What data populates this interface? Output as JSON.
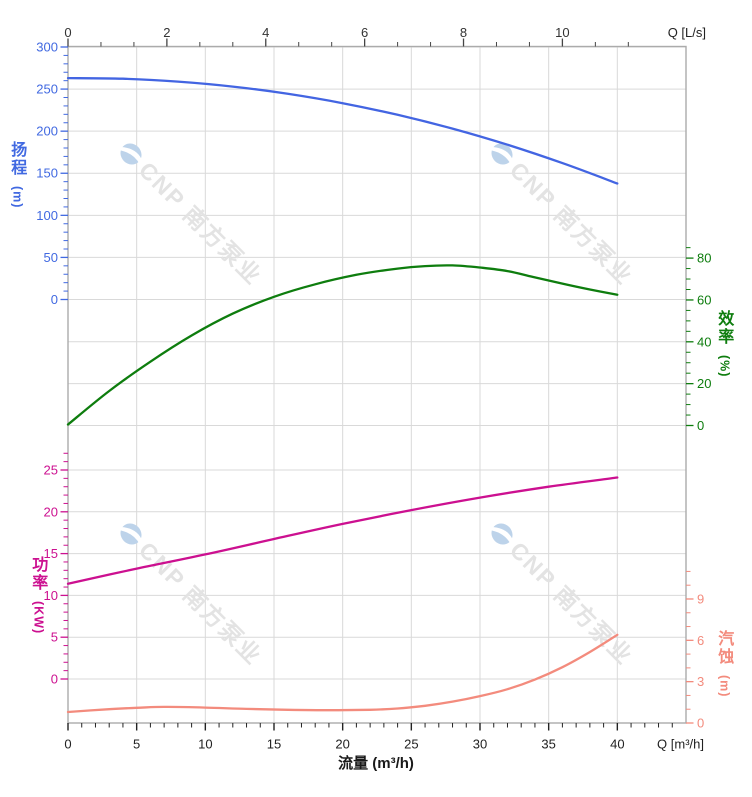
{
  "watermark": {
    "text": "CNP 南方泵业",
    "logo_color": "#bdd3ea",
    "text_color": "#e3e3e3"
  },
  "axes": {
    "x_bottom": {
      "axis_label": "流量 (m³/h)",
      "unit_label": "Q [m³/h]",
      "color": "#2b2b2b",
      "ticks": [
        0,
        5,
        10,
        15,
        20,
        25,
        30,
        35,
        40
      ],
      "range": [
        0,
        45
      ]
    },
    "x_top": {
      "unit_label": "Q [L/s]",
      "color": "#2b2b2b",
      "ticks": [
        0,
        2,
        4,
        6,
        8,
        10
      ]
    },
    "head": {
      "title": "扬程",
      "unit": "(m)",
      "color": "#4169e1",
      "ticks": [
        300,
        250,
        200,
        150,
        100,
        50,
        0
      ],
      "range": [
        0,
        300
      ]
    },
    "efficiency": {
      "title": "效率",
      "unit": "(%)",
      "color": "#0e7d0e",
      "ticks": [
        80,
        60,
        40,
        20,
        0
      ],
      "range": [
        0,
        80
      ]
    },
    "power": {
      "title": "功率",
      "unit": "(KW)",
      "color": "#cc1090",
      "ticks": [
        25,
        20,
        15,
        10,
        5,
        0
      ],
      "range": [
        0,
        25
      ]
    },
    "npsh": {
      "title": "汽蚀",
      "unit": "(m)",
      "color": "#f38b7d",
      "ticks": [
        9,
        6,
        3,
        0
      ],
      "range": [
        0,
        9
      ]
    }
  },
  "chart_data": {
    "type": "line",
    "x_axis": {
      "label": "流量 (m³/h)",
      "secondary_label": "Q [L/s]",
      "min": 0,
      "max": 45,
      "major_tick_step": 5,
      "minor_tick_step": 1,
      "grid": true
    },
    "top_axis_unit_conversion_ticks": [
      0,
      2,
      4,
      6,
      8,
      10
    ],
    "series": [
      {
        "id": "head",
        "name": "扬程",
        "axis": "head",
        "color": "#4365e2",
        "points": [
          [
            0,
            263.0
          ],
          [
            4,
            262.3
          ],
          [
            8,
            258.9
          ],
          [
            12,
            253.0
          ],
          [
            16,
            244.4
          ],
          [
            20,
            233.2
          ],
          [
            24,
            219.4
          ],
          [
            28,
            203.0
          ],
          [
            32,
            183.9
          ],
          [
            36,
            162.1
          ],
          [
            40,
            137.8
          ]
        ]
      },
      {
        "id": "efficiency",
        "name": "效率",
        "axis": "efficiency",
        "color": "#0e7d0e",
        "points": [
          [
            0,
            0.5
          ],
          [
            3,
            16.5
          ],
          [
            6,
            30.5
          ],
          [
            9,
            43.0
          ],
          [
            12,
            53.5
          ],
          [
            15,
            61.5
          ],
          [
            18,
            67.5
          ],
          [
            21,
            72.0
          ],
          [
            24,
            75.0
          ],
          [
            26,
            76.2
          ],
          [
            28,
            76.5
          ],
          [
            30,
            75.5
          ],
          [
            32,
            73.8
          ],
          [
            34,
            70.8
          ],
          [
            36,
            67.8
          ],
          [
            38,
            65.0
          ],
          [
            40,
            62.5
          ]
        ]
      },
      {
        "id": "power",
        "name": "功率",
        "axis": "power",
        "color": "#cc1090",
        "points": [
          [
            0,
            11.4
          ],
          [
            5,
            13.2
          ],
          [
            10,
            14.9
          ],
          [
            15,
            16.75
          ],
          [
            20,
            18.55
          ],
          [
            25,
            20.2
          ],
          [
            30,
            21.7
          ],
          [
            35,
            23.0
          ],
          [
            40,
            24.1
          ]
        ]
      },
      {
        "id": "npsh",
        "name": "汽蚀",
        "axis": "npsh",
        "color": "#f38b7d",
        "points": [
          [
            0,
            0.8
          ],
          [
            3,
            1.0
          ],
          [
            5,
            1.1
          ],
          [
            7,
            1.17
          ],
          [
            10,
            1.12
          ],
          [
            13,
            1.02
          ],
          [
            16,
            0.96
          ],
          [
            19,
            0.93
          ],
          [
            22,
            0.96
          ],
          [
            24,
            1.05
          ],
          [
            26,
            1.25
          ],
          [
            28,
            1.55
          ],
          [
            30,
            1.95
          ],
          [
            32,
            2.45
          ],
          [
            34,
            3.15
          ],
          [
            36,
            4.05
          ],
          [
            38,
            5.15
          ],
          [
            40,
            6.4
          ]
        ]
      }
    ]
  }
}
